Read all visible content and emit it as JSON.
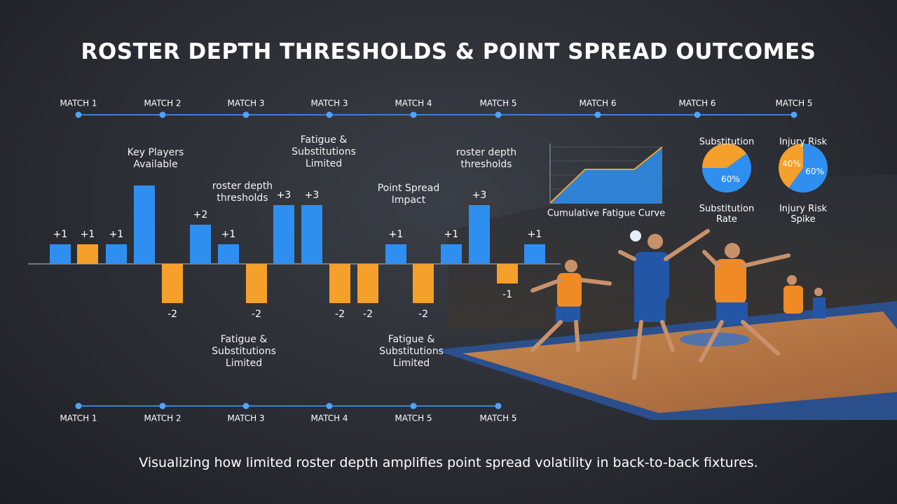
{
  "title": "ROSTER DEPTH THRESHOLDS & POINT SPREAD OUTCOMES",
  "caption": "Visualizing how limited roster depth amplifies point spread volatility in back-to-back fixtures.",
  "timeline_top": [
    "MATCH 1",
    "MATCH 2",
    "MATCH 3",
    "MATCH 3",
    "MATCH 4",
    "MATCH 5",
    "MATCH 6",
    "MATCH 6",
    "MATCH 5"
  ],
  "timeline_bottom": [
    "MATCH 1",
    "MATCH 2",
    "MATCH 3",
    "MATCH 4",
    "MATCH 5",
    "MATCH 5"
  ],
  "annotations": [
    "Key Players Available",
    "roster depth thresholds",
    "Fatigue & Substitutions Limited",
    "Point Spread Impact",
    "roster depth thresholds",
    "Fatigue & Substitutions Limited",
    "Fatigue & Substitutions Limited"
  ],
  "chart_data": [
    {
      "type": "bar",
      "values": [
        1,
        1,
        1,
        4,
        -2,
        2,
        1,
        -2,
        3,
        3,
        -2,
        -2,
        1,
        -2,
        1,
        3,
        -1,
        1
      ],
      "value_labels": [
        "+1",
        "+1",
        "+1",
        null,
        "-2",
        "+2",
        "+1",
        "-2",
        "+3",
        "+3",
        "-2",
        "-2",
        "+1",
        "-2",
        "+1",
        "+3",
        "-1",
        "+1"
      ],
      "colors": [
        "#2f8ff0",
        "#f5a02a",
        "#2f8ff0",
        "#2f8ff0",
        "#f5a02a",
        "#2f8ff0",
        "#2f8ff0",
        "#f5a02a",
        "#2f8ff0",
        "#2f8ff0",
        "#f5a02a",
        "#f5a02a",
        "#2f8ff0",
        "#f5a02a",
        "#2f8ff0",
        "#2f8ff0",
        "#f5a02a",
        "#2f8ff0"
      ]
    },
    {
      "type": "area",
      "title": "Cumulative Fatigue Curve",
      "x": [
        0,
        1,
        2.4,
        3.2
      ],
      "values": [
        0,
        0.6,
        0.6,
        1
      ],
      "xlim": [
        0,
        3.2
      ],
      "ylim": [
        0,
        1
      ],
      "color": "#2f8ff0",
      "line_color": "#f5a02a"
    },
    {
      "type": "pie",
      "title": "Substitution",
      "subtitle": "Substitution Rate",
      "values": [
        40,
        60
      ],
      "value_labels": [
        null,
        "60%"
      ],
      "colors": [
        "#f5a02a",
        "#2f8ff0"
      ]
    },
    {
      "type": "pie",
      "title": "Injury Risk",
      "subtitle": "Injury Risk Spike",
      "values": [
        60,
        40
      ],
      "value_labels": [
        "60%",
        "40%"
      ],
      "colors": [
        "#2f8ff0",
        "#f5a02a"
      ]
    }
  ]
}
